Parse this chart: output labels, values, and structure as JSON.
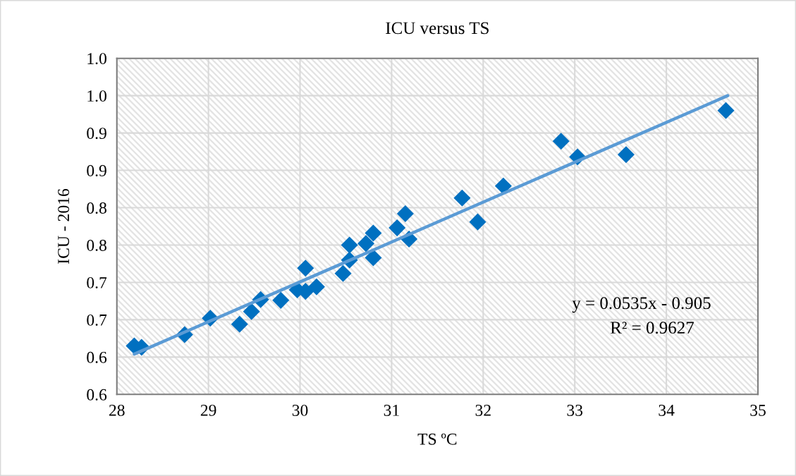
{
  "chart_data": {
    "type": "scatter",
    "title": "ICU versus TS",
    "xlabel": "TS ºC",
    "ylabel": "ICU - 2016",
    "xlim": [
      28,
      35
    ],
    "xticks": [
      28,
      29,
      30,
      31,
      32,
      33,
      34,
      35
    ],
    "ylim": [
      0.55,
      1.0
    ],
    "yticks": [
      {
        "value": 0.55,
        "label": "0.6"
      },
      {
        "value": 0.6,
        "label": "0.6"
      },
      {
        "value": 0.65,
        "label": "0.7"
      },
      {
        "value": 0.7,
        "label": "0.7"
      },
      {
        "value": 0.75,
        "label": "0.8"
      },
      {
        "value": 0.8,
        "label": "0.8"
      },
      {
        "value": 0.85,
        "label": "0.9"
      },
      {
        "value": 0.9,
        "label": "0.9"
      },
      {
        "value": 0.95,
        "label": "1.0"
      },
      {
        "value": 1.0,
        "label": "1.0"
      }
    ],
    "grid": true,
    "series": [
      {
        "marker": "diamond",
        "color": "#0070c0",
        "x": [
          28.19,
          28.27,
          28.74,
          29.02,
          29.34,
          29.47,
          29.57,
          29.79,
          29.97,
          30.06,
          30.06,
          30.18,
          30.47,
          30.54,
          30.54,
          30.72,
          30.8,
          30.8,
          31.06,
          31.15,
          31.19,
          31.77,
          31.94,
          32.22,
          32.85,
          33.03,
          33.56,
          34.65
        ],
        "values": [
          0.615,
          0.613,
          0.63,
          0.652,
          0.644,
          0.661,
          0.677,
          0.676,
          0.69,
          0.688,
          0.719,
          0.694,
          0.712,
          0.73,
          0.75,
          0.752,
          0.733,
          0.766,
          0.773,
          0.792,
          0.758,
          0.813,
          0.781,
          0.829,
          0.889,
          0.868,
          0.871,
          0.93
        ]
      },
      {
        "type": "line",
        "marker": "none",
        "line_style": "solid",
        "color": "#5b9bd5",
        "x": [
          28.19,
          34.67
        ],
        "values": [
          0.604,
          0.95
        ]
      }
    ],
    "annotations": [
      "y = 0.0535x - 0.905",
      "R² = 0.9627"
    ]
  }
}
